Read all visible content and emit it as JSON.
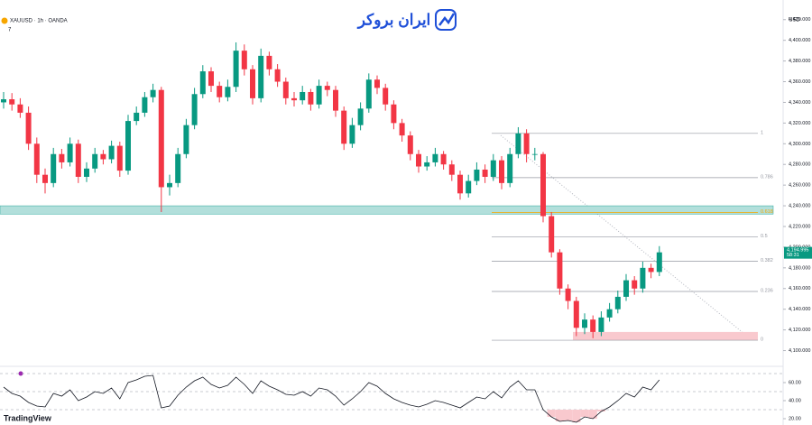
{
  "header": {
    "symbol": "XAUUSD · 1h · OANDA",
    "indicator_count": "7",
    "currency": "USD",
    "brand": "ایران بروکر",
    "footer_brand": "TradingView"
  },
  "chart_data": {
    "type": "candlestick",
    "up_color": "#089981",
    "down_color": "#f23645",
    "open": [
      4340,
      4343,
      4338,
      4330,
      4300,
      4270,
      4262,
      4290,
      4282,
      4300,
      4268,
      4276,
      4290,
      4285,
      4298,
      4274,
      4322,
      4330,
      4345,
      4352,
      4258,
      4262,
      4290,
      4318,
      4348,
      4370,
      4356,
      4345,
      4355,
      4390,
      4372,
      4344,
      4385,
      4372,
      4360,
      4344,
      4342,
      4350,
      4338,
      4356,
      4352,
      4332,
      4300,
      4318,
      4334,
      4362,
      4354,
      4338,
      4320,
      4308,
      4290,
      4278,
      4282,
      4290,
      4280,
      4270,
      4252,
      4264,
      4275,
      4268,
      4284,
      4262,
      4290,
      4310,
      4290,
      4290,
      4230,
      4195,
      4160,
      4148,
      4122,
      4130,
      4118,
      4132,
      4140,
      4152,
      4168,
      4160,
      4180,
      4176
    ],
    "high": [
      4350,
      4349,
      4344,
      4336,
      4306,
      4276,
      4296,
      4295,
      4306,
      4304,
      4282,
      4296,
      4294,
      4303,
      4302,
      4328,
      4336,
      4350,
      4358,
      4355,
      4270,
      4296,
      4324,
      4354,
      4376,
      4374,
      4360,
      4362,
      4398,
      4396,
      4376,
      4392,
      4389,
      4377,
      4364,
      4350,
      4356,
      4353,
      4362,
      4360,
      4356,
      4336,
      4325,
      4340,
      4368,
      4366,
      4358,
      4342,
      4324,
      4312,
      4294,
      4288,
      4296,
      4293,
      4284,
      4274,
      4270,
      4282,
      4280,
      4290,
      4288,
      4296,
      4316,
      4314,
      4296,
      4292,
      4234,
      4198,
      4164,
      4152,
      4136,
      4134,
      4138,
      4146,
      4158,
      4174,
      4172,
      4186,
      4184,
      4201
    ],
    "low": [
      4334,
      4332,
      4325,
      4294,
      4262,
      4252,
      4258,
      4276,
      4278,
      4262,
      4263,
      4272,
      4280,
      4281,
      4268,
      4270,
      4318,
      4326,
      4340,
      4234,
      4250,
      4258,
      4286,
      4314,
      4344,
      4350,
      4340,
      4341,
      4350,
      4366,
      4338,
      4340,
      4366,
      4355,
      4338,
      4336,
      4338,
      4332,
      4334,
      4346,
      4326,
      4294,
      4296,
      4313,
      4330,
      4348,
      4332,
      4314,
      4302,
      4284,
      4272,
      4274,
      4278,
      4275,
      4264,
      4246,
      4248,
      4260,
      4262,
      4264,
      4256,
      4258,
      4286,
      4282,
      4284,
      4224,
      4190,
      4154,
      4140,
      4114,
      4116,
      4112,
      4114,
      4128,
      4136,
      4148,
      4154,
      4156,
      4170,
      4172
    ],
    "close": [
      4343,
      4338,
      4330,
      4300,
      4270,
      4262,
      4290,
      4282,
      4300,
      4268,
      4276,
      4290,
      4285,
      4298,
      4274,
      4322,
      4330,
      4345,
      4352,
      4258,
      4262,
      4290,
      4318,
      4348,
      4370,
      4356,
      4345,
      4355,
      4390,
      4372,
      4344,
      4385,
      4372,
      4360,
      4344,
      4342,
      4350,
      4338,
      4356,
      4352,
      4332,
      4300,
      4318,
      4334,
      4362,
      4354,
      4338,
      4320,
      4308,
      4290,
      4278,
      4282,
      4290,
      4280,
      4270,
      4252,
      4264,
      4275,
      4268,
      4284,
      4262,
      4290,
      4310,
      4290,
      4290,
      4230,
      4195,
      4160,
      4148,
      4122,
      4130,
      4118,
      4132,
      4140,
      4152,
      4168,
      4160,
      4180,
      4176,
      4194.995
    ],
    "last_close_label": "4,194.995",
    "countdown": "58:31",
    "ylim": [
      4090,
      4432
    ],
    "yticks": [
      {
        "value": 4100,
        "label": "4,100.000"
      },
      {
        "value": 4120,
        "label": "4,120.000"
      },
      {
        "value": 4140,
        "label": "4,140.000"
      },
      {
        "value": 4160,
        "label": "4,160.000"
      },
      {
        "value": 4180,
        "label": "4,180.000"
      },
      {
        "value": 4200,
        "label": "4,200.000"
      },
      {
        "value": 4220,
        "label": "4,220.000"
      },
      {
        "value": 4240,
        "label": "4,240.000"
      },
      {
        "value": 4260,
        "label": "4,260.000"
      },
      {
        "value": 4280,
        "label": "4,280.000"
      },
      {
        "value": 4300,
        "label": "4,300.000"
      },
      {
        "value": 4320,
        "label": "4,320.000"
      },
      {
        "value": 4340,
        "label": "4,340.000"
      },
      {
        "value": 4360,
        "label": "4,360.000"
      },
      {
        "value": 4380,
        "label": "4,380.000"
      },
      {
        "value": 4400,
        "label": "4,400.000"
      },
      {
        "value": 4420,
        "label": "4,420.000"
      }
    ],
    "fib": {
      "low": 4110,
      "high": 4310,
      "levels": [
        1,
        0.786,
        0.618,
        0.5,
        0.382,
        0.236,
        0
      ],
      "color": "#9598a1",
      "highlight_color": "#f7a600",
      "highlight": 0.618
    },
    "zones": [
      {
        "from": 4232,
        "to": 4240,
        "color": "#b2dfdb"
      },
      {
        "from": 4110,
        "to": 4118,
        "color": "#f9c9ce"
      }
    ],
    "rsi": {
      "values": [
        55,
        48,
        45,
        38,
        34,
        33,
        48,
        45,
        52,
        40,
        44,
        50,
        48,
        54,
        42,
        60,
        63,
        67,
        68,
        32,
        34,
        46,
        55,
        62,
        66,
        58,
        54,
        57,
        66,
        58,
        48,
        62,
        56,
        52,
        47,
        46,
        50,
        45,
        54,
        52,
        45,
        35,
        42,
        50,
        60,
        56,
        48,
        42,
        38,
        35,
        33,
        36,
        40,
        38,
        35,
        32,
        38,
        44,
        42,
        50,
        43,
        55,
        62,
        52,
        52,
        30,
        22,
        17,
        18,
        16,
        22,
        20,
        28,
        33,
        40,
        48,
        44,
        55,
        52,
        63
      ],
      "color": "#131722",
      "ylim": [
        16,
        74
      ],
      "yticks": [
        {
          "value": 60,
          "label": "60.00"
        },
        {
          "value": 40,
          "label": "40.00"
        },
        {
          "value": 20,
          "label": "20.00"
        }
      ],
      "bands": [
        70,
        50,
        30
      ]
    }
  }
}
